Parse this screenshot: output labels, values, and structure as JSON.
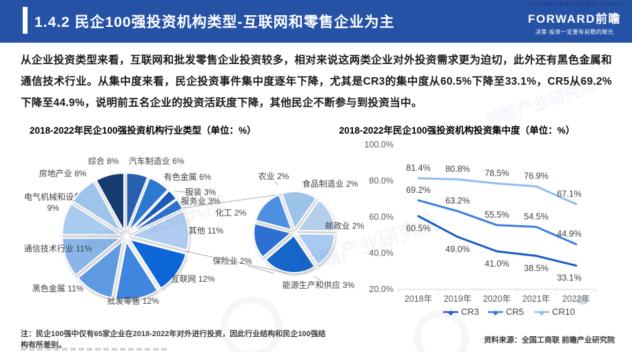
{
  "header": {
    "mini_watermark": "企业投融资并购需求对接微信13389986113",
    "title": "1.4.2 民企100强投资机构类型-互联网和零售企业为主",
    "logo_text": "FORWARD前瞻",
    "logo_tagline": "决策·投资一定要有前瞻的眼光",
    "accent_color": "#2652A6"
  },
  "body": {
    "paragraph": "从企业投资类型来看，互联网和批发零售企业投资较多，相对来说这两类企业对外投资需求更为迫切，此外还有黑色金属和通信技术行业。从集中度来看，民企投资事件集中度逐年下降，尤其是CR3的集中度从60.5%下降至33.1%，CR5从69.2%下降至44.9%，说明前五名企业的投资活跃度下降，其他民企不断参与到投资当中。"
  },
  "section_titles": {
    "left": "2018-2022年民企100强投资机构行业类型（单位：%）",
    "right": "2018-2022年民企100强投资机构投资集中度（单位：%）"
  },
  "chart_data": [
    {
      "type": "pie",
      "title": "2018-2022年民企100强投资机构行业类型（单位：%）",
      "label_format": "{label} {value}%",
      "slices": [
        {
          "label": "汽车制造业",
          "value": 6,
          "color": "#2561AE"
        },
        {
          "label": "有色金属",
          "value": 6,
          "color": "#2E79D0"
        },
        {
          "label": "服装",
          "value": 3,
          "color": "#1D5AB8"
        },
        {
          "label": "服务业",
          "value": 3,
          "color": "#2E70CC"
        },
        {
          "label": "其他",
          "value": 11,
          "color": "#AFCBEF"
        },
        {
          "label": "互联网",
          "value": 12,
          "color": "#1166D8"
        },
        {
          "label": "批发零售",
          "value": 12,
          "color": "#3F85DE"
        },
        {
          "label": "黑色金属",
          "value": 11,
          "color": "#5E99DF"
        },
        {
          "label": "通信技术行业",
          "value": 11,
          "color": "#8BB5E8"
        },
        {
          "label": "电气机械和设备",
          "value": 9,
          "color": "#A9CBF0"
        },
        {
          "label": "房地产业",
          "value": 8,
          "color": "#9FC4EC"
        },
        {
          "label": "综合",
          "value": 8,
          "color": "#153A6E"
        }
      ]
    },
    {
      "type": "pie",
      "breakout_of": "其他",
      "label_format": "{label} {value}%",
      "slices": [
        {
          "label": "农业",
          "value": 2,
          "color": "#9DC3E8"
        },
        {
          "label": "食品制造业",
          "value": 2,
          "color": "#B4CFEC"
        },
        {
          "label": "邮政业",
          "value": 2,
          "color": "#A8C9F0"
        },
        {
          "label": "能源生产和供应",
          "value": 3,
          "color": "#1565C8"
        },
        {
          "label": "保险业",
          "value": 2,
          "color": "#2F6FD2"
        },
        {
          "label": "化工",
          "value": 2,
          "color": "#4E8FE0"
        }
      ]
    },
    {
      "type": "line",
      "title": "2018-2022年民企100强投资机构投资集中度（单位：%）",
      "categories": [
        "2018年",
        "2019年",
        "2020年",
        "2021年",
        "2022年"
      ],
      "series": [
        {
          "name": "CR3",
          "values": [
            60.5,
            49.0,
            41.0,
            38.5,
            33.1
          ],
          "color": "#1A5CC4"
        },
        {
          "name": "CR5",
          "values": [
            69.2,
            63.2,
            55.5,
            54.5,
            44.9
          ],
          "color": "#3F7EDC"
        },
        {
          "name": "CR10",
          "values": [
            81.4,
            80.8,
            78.5,
            76.9,
            67.1
          ],
          "color": "#92BEEE"
        }
      ],
      "ylim": [
        20,
        100
      ],
      "ytick_labels": [
        "100.0%",
        "80.0%",
        "60.0%",
        "40.0%",
        "20.0%"
      ],
      "legend": [
        "CR3",
        "CR5",
        "CR10"
      ],
      "legend_position": "bottom",
      "grid": false
    }
  ],
  "footer": {
    "note_lines": [
      "注：民企100强中仅有65家企业在2018-2022年对外进行投资，因此行业结构和民企100强结",
      "构有所差别。"
    ],
    "source": "资料来源：全国工商联  前瞻产业研究院"
  },
  "watermark_text": "前瞻产业研究院"
}
